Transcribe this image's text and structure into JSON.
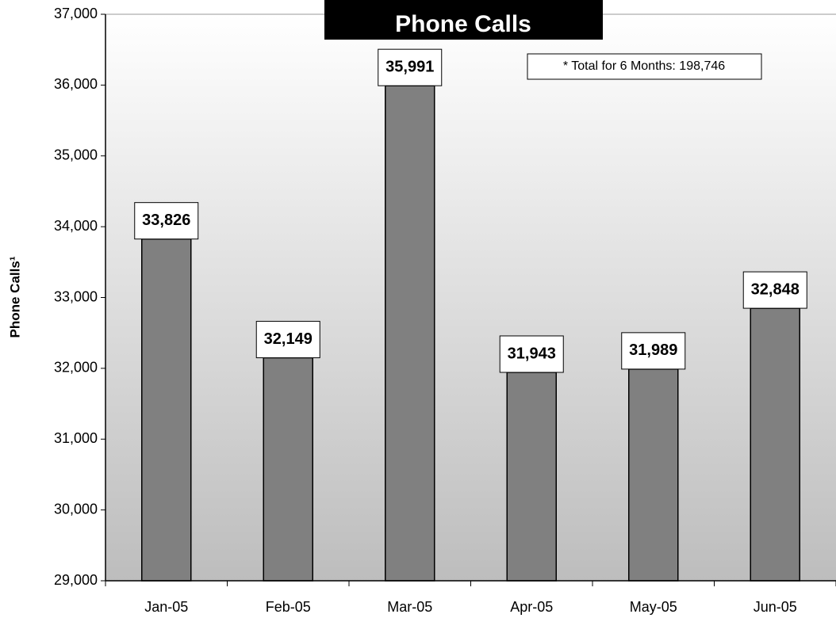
{
  "chart_data": {
    "type": "bar",
    "title": "Phone Calls",
    "annotation": "* Total for 6 Months: 198,746",
    "y_label": "Phone Calls¹",
    "categories": [
      "Jan-05",
      "Feb-05",
      "Mar-05",
      "Apr-05",
      "May-05",
      "Jun-05"
    ],
    "values": [
      33826,
      32149,
      35991,
      31943,
      31989,
      32848
    ],
    "value_labels": [
      "33,826",
      "32,149",
      "35,991",
      "31,943",
      "31,989",
      "32,848"
    ],
    "color": "#808080",
    "ylim": [
      29000,
      37000
    ],
    "yticks": [
      {
        "value": 29000,
        "label": "29,000"
      },
      {
        "value": 30000,
        "label": "30,000"
      },
      {
        "value": 31000,
        "label": "31,000"
      },
      {
        "value": 32000,
        "label": "32,000"
      },
      {
        "value": 33000,
        "label": "33,000"
      },
      {
        "value": 34000,
        "label": "34,000"
      },
      {
        "value": 35000,
        "label": "35,000"
      },
      {
        "value": 36000,
        "label": "36,000"
      },
      {
        "value": 37000,
        "label": "37,000"
      }
    ]
  }
}
